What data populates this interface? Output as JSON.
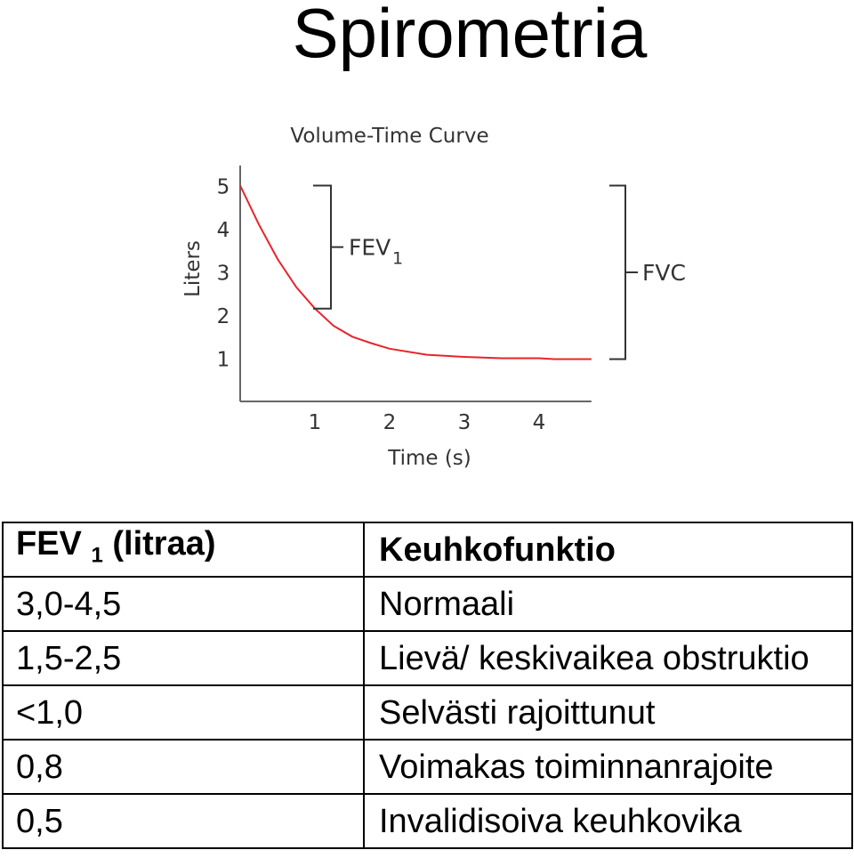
{
  "slide": {
    "title": "Spirometria"
  },
  "chart_data": {
    "type": "line",
    "title": "Volume-Time Curve",
    "xlabel": "Time (s)",
    "ylabel": "Liters",
    "xticks": [
      "1",
      "2",
      "3",
      "4"
    ],
    "yticks": [
      "1",
      "2",
      "3",
      "4",
      "5"
    ],
    "xlim": [
      0,
      4.7
    ],
    "ylim": [
      0,
      5
    ],
    "series": [
      {
        "color": "#e8242a",
        "x": [
          0,
          0.25,
          0.5,
          0.75,
          1.0,
          1.25,
          1.5,
          1.75,
          2.0,
          2.5,
          3.0,
          3.5,
          4.0,
          4.2,
          4.7
        ],
        "y": [
          5.0,
          4.1,
          3.3,
          2.65,
          2.15,
          1.75,
          1.5,
          1.35,
          1.22,
          1.08,
          1.03,
          1.0,
          1.0,
          0.98,
          0.98
        ]
      }
    ],
    "annotations": [
      {
        "label": "FEV",
        "subscript": "1",
        "y_from": 2.15,
        "y_to": 5.0
      },
      {
        "label": "FVC",
        "y_from": 0.98,
        "y_to": 5.0
      }
    ]
  },
  "table": {
    "headers": {
      "col1_main": "FEV",
      "col1_sub": "1",
      "col1_rest": " (litraa)",
      "col2": "Keuhkofunktio"
    },
    "rows": [
      {
        "fev": "3,0-4,5",
        "function": "Normaali"
      },
      {
        "fev": "1,5-2,5",
        "function": "Lievä/ keskivaikea obstruktio"
      },
      {
        "fev": "<1,0",
        "function": "Selvästi rajoittunut"
      },
      {
        "fev": "0,8",
        "function": "Voimakas toiminnanrajoite"
      },
      {
        "fev": "0,5",
        "function": "Invalidisoiva keuhkovika"
      }
    ]
  }
}
